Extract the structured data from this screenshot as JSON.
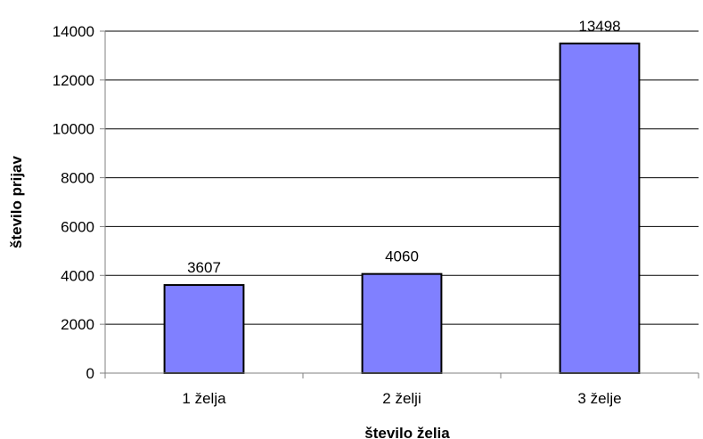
{
  "chart_data": {
    "type": "bar",
    "categories": [
      "1 želja",
      "2 želji",
      "3 želje"
    ],
    "values": [
      3607,
      4060,
      13498
    ],
    "data_labels": [
      "3607",
      "4060",
      "13498"
    ],
    "title": "",
    "xlabel": "število želia",
    "ylabel": "število prijav",
    "ylim": [
      0,
      14000
    ],
    "y_ticks": [
      0,
      2000,
      4000,
      6000,
      8000,
      10000,
      12000,
      14000
    ],
    "y_tick_labels": [
      "0",
      "2000",
      "4000",
      "6000",
      "8000",
      "10000",
      "12000",
      "14000"
    ],
    "grid": "horizontal major gridlines",
    "legend": "none",
    "colors": {
      "bar_fill": "#8080ff",
      "bar_stroke": "#000000",
      "gridline": "#000000",
      "axis": "#808080"
    }
  }
}
